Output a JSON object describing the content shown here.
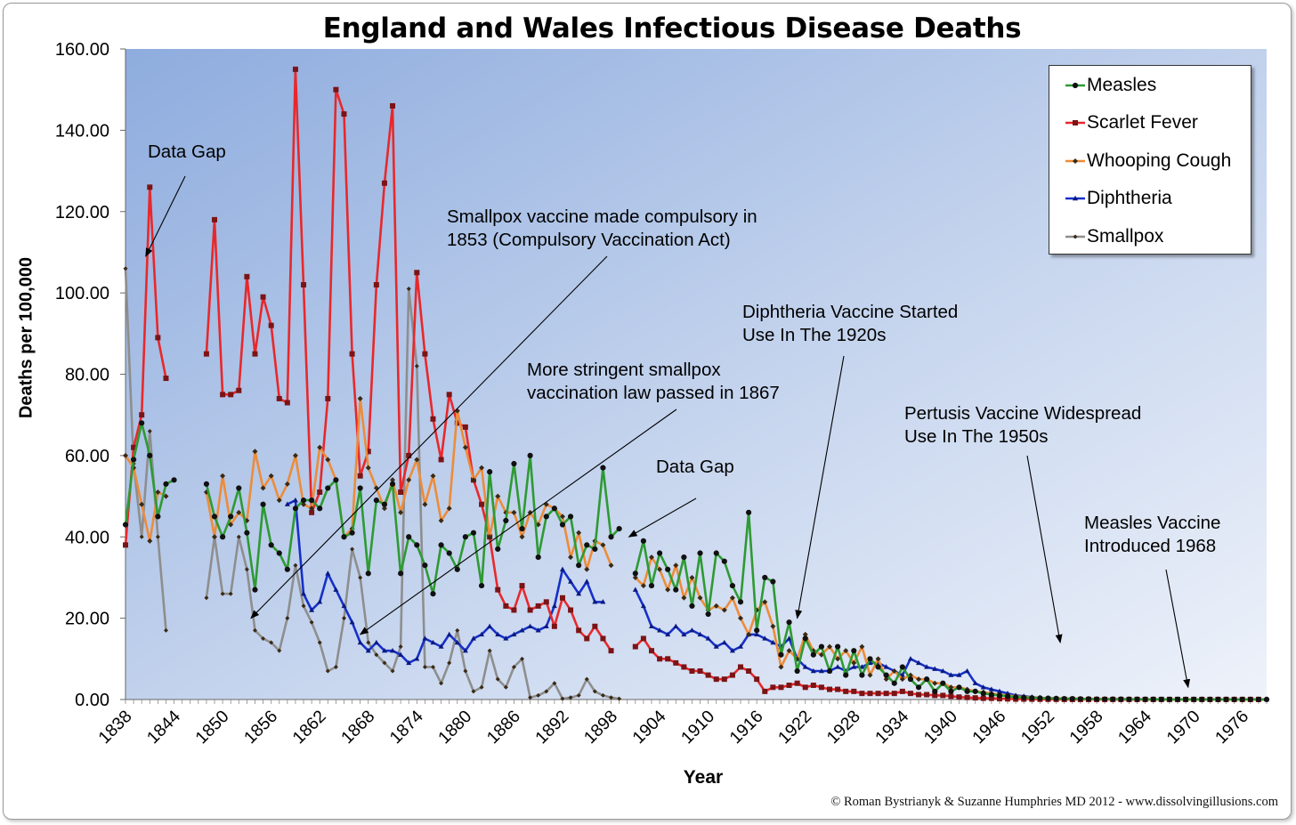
{
  "chart_data": {
    "type": "line",
    "title": "England and Wales Infectious Disease Deaths",
    "xlabel": "Year",
    "ylabel": "Deaths per 100,000",
    "ylim": [
      0,
      160
    ],
    "xlim": [
      1838,
      1979
    ],
    "y_ticks": [
      "0.00",
      "20.00",
      "40.00",
      "60.00",
      "80.00",
      "100.00",
      "120.00",
      "140.00",
      "160.00"
    ],
    "x_ticks": [
      "1838",
      "1844",
      "1850",
      "1856",
      "1862",
      "1868",
      "1874",
      "1880",
      "1886",
      "1892",
      "1898",
      "1904",
      "1910",
      "1916",
      "1922",
      "1928",
      "1934",
      "1940",
      "1946",
      "1952",
      "1958",
      "1964",
      "1970",
      "1976"
    ],
    "grid": false,
    "legend_position": "top-right",
    "series": [
      {
        "name": "Measles",
        "color": "#2e9a33",
        "marker": "circle",
        "segments": [
          {
            "start": 1838,
            "values": [
              43,
              59,
              68,
              60,
              45,
              53,
              54
            ]
          },
          {
            "start": 1848,
            "values": [
              53,
              45,
              40,
              45,
              52,
              41,
              27,
              48,
              38,
              36,
              32,
              47,
              49,
              49,
              47,
              52,
              54,
              40,
              41,
              52,
              31,
              49,
              48,
              53,
              31,
              40,
              38,
              33,
              26,
              38,
              36,
              32,
              40,
              41,
              28,
              56,
              37,
              44,
              58,
              42,
              60,
              35,
              45,
              47,
              43,
              45,
              33,
              38,
              37,
              57,
              40,
              42
            ]
          },
          {
            "start": 1901,
            "values": [
              31,
              39,
              28,
              36,
              32,
              27,
              35,
              23,
              36,
              21,
              36,
              34,
              28,
              24,
              46,
              17,
              30,
              29,
              11,
              19,
              7,
              15,
              11,
              13,
              7,
              13,
              6,
              12,
              6,
              10,
              8,
              6,
              4,
              8,
              5,
              3,
              5,
              2,
              4,
              2,
              3,
              2,
              2,
              1.5,
              1.2,
              1,
              0.8,
              0.6,
              0.5,
              0.4,
              0.35,
              0.3,
              0.25,
              0.2,
              0.2,
              0.15,
              0.15,
              0.1,
              0.1,
              0.1,
              0.08,
              0.07,
              0.06,
              0.05,
              0.05,
              0.04,
              0.03,
              0.03,
              0.02,
              0.02,
              0.02,
              0.02,
              0.02,
              0.02,
              0.02,
              0.02,
              0.02,
              0.02,
              0.02
            ]
          }
        ]
      },
      {
        "name": "Scarlet Fever",
        "color": "#e8282b",
        "marker": "square",
        "segments": [
          {
            "start": 1838,
            "values": [
              38,
              62,
              70,
              126,
              89,
              79
            ]
          },
          {
            "start": 1848,
            "values": [
              85,
              118,
              75,
              75,
              76,
              104,
              85,
              99,
              92,
              74,
              73,
              155,
              102,
              46,
              51,
              74,
              150,
              144,
              85,
              55,
              61,
              102,
              127,
              146,
              51,
              60,
              105,
              85,
              69,
              59,
              75,
              68,
              67,
              54,
              48,
              40,
              27,
              23,
              22,
              28,
              22,
              23,
              24,
              18,
              25,
              22,
              17,
              15,
              18,
              15,
              12
            ]
          },
          {
            "start": 1901,
            "values": [
              13,
              15,
              12,
              10,
              10,
              9,
              8,
              7,
              7,
              6,
              5,
              5,
              6,
              8,
              7,
              5,
              2,
              3,
              3,
              3.5,
              4,
              3,
              3.5,
              3,
              2.5,
              2.5,
              2,
              2,
              1.5,
              1.5,
              1.5,
              1.5,
              1.5,
              2,
              1.5,
              1.2,
              1.2,
              1,
              1,
              0.8,
              0.6,
              0.5,
              0.4,
              0.3,
              0.3,
              0.2,
              0.15,
              0.1,
              0.1,
              0.08,
              0.06,
              0.05,
              0.04,
              0.03,
              0.02,
              0.02,
              0.02,
              0.02,
              0.02,
              0.02,
              0.02,
              0.02,
              0.02,
              0.02,
              0.02,
              0.02,
              0.02,
              0.02,
              0.02,
              0.02,
              0.02,
              0.02,
              0.02,
              0.02,
              0.02,
              0.02,
              0.02,
              0.02
            ]
          }
        ]
      },
      {
        "name": "Whooping Cough",
        "color": "#ed8c3a",
        "marker": "diamond",
        "segments": [
          {
            "start": 1838,
            "values": [
              60,
              57,
              48,
              39,
              51,
              50
            ]
          },
          {
            "start": 1848,
            "values": [
              51,
              40,
              55,
              43,
              46,
              44,
              61,
              52,
              55,
              49,
              53,
              60,
              48,
              47,
              62,
              59,
              54,
              40,
              42,
              74,
              57,
              52,
              47,
              54,
              46,
              54,
              59,
              48,
              55,
              44,
              47,
              71,
              62,
              54,
              57,
              40,
              50,
              46,
              46,
              40,
              46,
              43,
              48,
              47,
              45,
              35,
              41,
              32,
              39,
              38,
              33
            ]
          },
          {
            "start": 1901,
            "values": [
              30,
              28,
              35,
              32,
              27,
              33,
              25,
              30,
              25,
              22,
              23,
              22,
              25,
              20,
              16,
              22,
              24,
              18,
              8,
              12,
              10,
              16,
              12,
              11,
              13,
              10,
              12,
              9,
              13,
              6,
              10,
              5,
              7,
              5,
              6,
              5,
              5,
              4,
              4,
              3,
              3,
              2.5,
              2,
              1.8,
              1.5,
              1.2,
              1,
              0.8,
              0.6,
              0.5,
              0.4,
              0.3,
              0.3,
              0.2,
              0.2,
              0.15,
              0.1,
              0.1,
              0.08,
              0.06,
              0.05,
              0.05,
              0.04,
              0.03,
              0.03,
              0.03,
              0.03,
              0.03,
              0.03,
              0.03,
              0.03,
              0.03,
              0.03,
              0.03,
              0.03,
              0.03,
              0.03,
              0.03,
              0.03
            ]
          }
        ]
      },
      {
        "name": "Diphtheria",
        "color": "#1630c8",
        "marker": "triangle",
        "segments": [
          {
            "start": 1858,
            "values": [
              48,
              49,
              26,
              22,
              24,
              31,
              27,
              23,
              19,
              14,
              12,
              14,
              12,
              12,
              11,
              9,
              10,
              15,
              14,
              13,
              16,
              14,
              12,
              15,
              16,
              18,
              16,
              15,
              16,
              17,
              18,
              17,
              18,
              23,
              32,
              29,
              26,
              29,
              24,
              24
            ]
          },
          {
            "start": 1901,
            "values": [
              27,
              23,
              18,
              17,
              16,
              18,
              16,
              17,
              16,
              15,
              13,
              14,
              12,
              13,
              16,
              16,
              15,
              14,
              13,
              15,
              10,
              8,
              7,
              7,
              7,
              8,
              7,
              8,
              8,
              9,
              9,
              8,
              7,
              6,
              10,
              9,
              8,
              7.5,
              7,
              6,
              6,
              7,
              4,
              3,
              2.5,
              2,
              1.5,
              1,
              0.8,
              0.6,
              0.4,
              0.3,
              0.2,
              0.15,
              0.1,
              0.08,
              0.06,
              0.05,
              0.04,
              0.03,
              0.02,
              0.02,
              0.02,
              0.02,
              0.02,
              0.02,
              0.02,
              0.02,
              0.02,
              0.02,
              0.02,
              0.02,
              0.02,
              0.02,
              0.02,
              0.02,
              0.02,
              0.02,
              0.02
            ]
          }
        ]
      },
      {
        "name": "Smallpox",
        "color": "#8e8e8e",
        "marker": "diamond-small",
        "segments": [
          {
            "start": 1838,
            "values": [
              106,
              58,
              40,
              66,
              40,
              17
            ]
          },
          {
            "start": 1848,
            "values": [
              25,
              40,
              26,
              26,
              40,
              32,
              17,
              15,
              14,
              12,
              20,
              33,
              23,
              19,
              14,
              7,
              8,
              20,
              37,
              30,
              14,
              11,
              9,
              7,
              13,
              101,
              82,
              8,
              8,
              4,
              9,
              17,
              7,
              2,
              3,
              12,
              5,
              3,
              8,
              10,
              0.5,
              1,
              2,
              4,
              0.2,
              0.5,
              1,
              5,
              2,
              1,
              0.5,
              0.2
            ]
          }
        ]
      }
    ],
    "annotations": [
      {
        "text": "Data Gap",
        "note": "early gap 1844-1847"
      },
      {
        "text": "Smallpox vaccine made compulsory in\n1853 (Compulsory Vaccination Act)"
      },
      {
        "text": "More stringent smallpox\nvaccination law passed in 1867"
      },
      {
        "text": "Data Gap",
        "note": "gap 1900"
      },
      {
        "text": "Diphtheria Vaccine Started\nUse In The 1920s"
      },
      {
        "text": "Pertusis Vaccine Widespread\nUse In The 1950s"
      },
      {
        "text": "Measles Vaccine\nIntroduced 1968"
      }
    ]
  },
  "copyright": "© Roman Bystrianyk & Suzanne Humphries MD 2012 - www.dissolvingillusions.com"
}
